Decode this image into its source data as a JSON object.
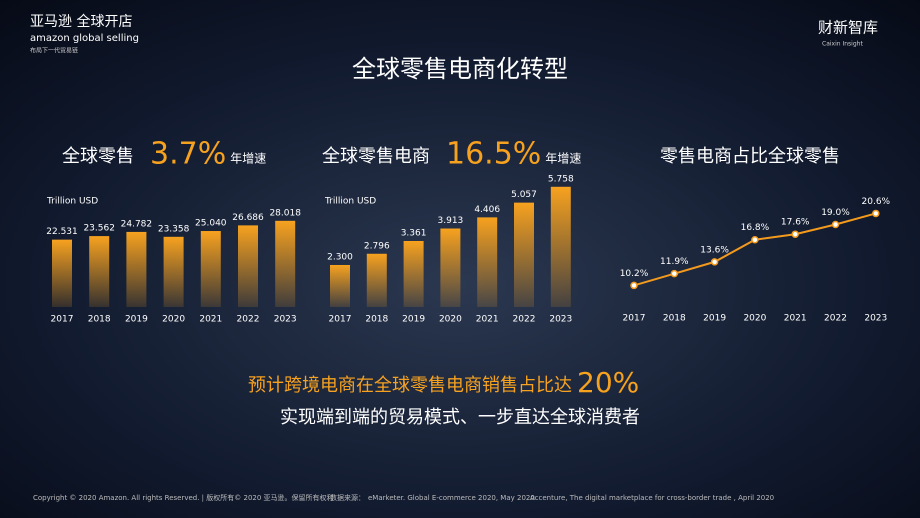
{
  "header": {
    "brand": "亚马逊 全球开店",
    "brand_en": "amazon global selling",
    "slogan": "布局下一代贸易链",
    "partner": "财新智库",
    "partner_en": "Caixin Insight"
  },
  "title": "全球零售电商化转型",
  "chart_data": [
    {
      "type": "bar",
      "title": "全球零售",
      "highlight": "3.7%",
      "highlight_suffix": "年增速",
      "unit": "Trillion USD",
      "categories": [
        "2017",
        "2018",
        "2019",
        "2020",
        "2021",
        "2022",
        "2023"
      ],
      "values": [
        22.531,
        23.562,
        24.782,
        23.358,
        25.04,
        26.686,
        28.018
      ],
      "value_labels": [
        "22.531",
        "23.562",
        "24.782",
        "23.358",
        "25.040",
        "26.686",
        "28.018"
      ],
      "color": "#f39a1e",
      "ylim": [
        0,
        30
      ]
    },
    {
      "type": "bar",
      "title": "全球零售电商",
      "highlight": "16.5%",
      "highlight_suffix": "年增速",
      "unit": "Trillion USD",
      "categories": [
        "2017",
        "2018",
        "2019",
        "2020",
        "2021",
        "2022",
        "2023"
      ],
      "values": [
        2.3,
        2.796,
        3.361,
        3.913,
        4.406,
        5.057,
        5.758
      ],
      "value_labels": [
        "2.300",
        "2.796",
        "3.361",
        "3.913",
        "4.406",
        "5.057",
        "5.758"
      ],
      "color": "#f39a1e",
      "ylim": [
        0,
        6.5
      ]
    },
    {
      "type": "line",
      "title": "零售电商占比全球零售",
      "categories": [
        "2017",
        "2018",
        "2019",
        "2020",
        "2021",
        "2022",
        "2023"
      ],
      "values": [
        10.2,
        11.9,
        13.6,
        16.8,
        17.6,
        19.0,
        20.6
      ],
      "value_labels": [
        "10.2%",
        "11.9%",
        "13.6%",
        "16.8%",
        "17.6%",
        "19.0%",
        "20.6%"
      ],
      "color": "#f39a1e",
      "ylim": [
        0,
        25
      ]
    }
  ],
  "conclusion": {
    "text": "预计跨境电商在全球零售电商销售占比达",
    "highlight": "20%",
    "subtext": "实现端到端的贸易模式、一步直达全球消费者"
  },
  "footer": {
    "copyright": "Copyright © 2020 Amazon. All rights Reserved. | 版权所有© 2020 亚马逊。保留所有权利",
    "source_label": "数据来源：",
    "source_1": "eMarketer. Global E-commerce 2020, May 2020",
    "source_2": "Accenture, The digital marketplace for cross-border trade , April 2020"
  }
}
